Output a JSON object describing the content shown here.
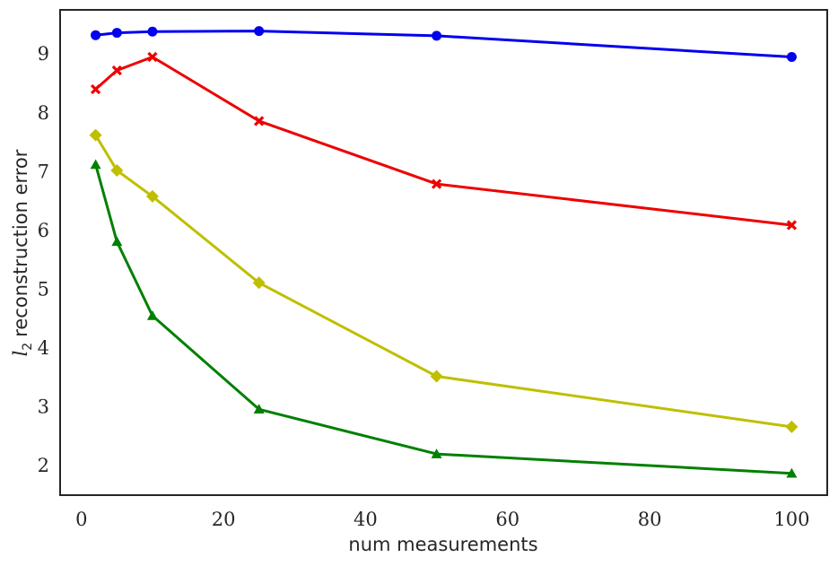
{
  "chart_data": {
    "type": "line",
    "xlabel": "num measurements",
    "ylabel": {
      "symbol": "l",
      "subscript": "2",
      "text": "reconstruction error"
    },
    "xlim": [
      -3,
      105
    ],
    "ylim": [
      1.5,
      9.75
    ],
    "xticks": [
      0,
      20,
      40,
      60,
      80,
      100
    ],
    "yticks": [
      2,
      3,
      4,
      5,
      6,
      7,
      8,
      9
    ],
    "grid": false,
    "x": [
      2,
      5,
      10,
      25,
      50,
      100
    ],
    "series": [
      {
        "color": "#0000ee",
        "marker": "circle",
        "values": [
          9.32,
          9.36,
          9.38,
          9.39,
          9.31,
          8.95
        ]
      },
      {
        "color": "#ee0000",
        "marker": "x",
        "values": [
          8.4,
          8.72,
          8.95,
          7.86,
          6.79,
          6.09
        ]
      },
      {
        "color": "#bfbf00",
        "marker": "diamond",
        "values": [
          7.62,
          7.02,
          6.58,
          5.11,
          3.52,
          2.66
        ]
      },
      {
        "color": "#008000",
        "marker": "triangle",
        "values": [
          7.12,
          5.81,
          4.55,
          2.96,
          2.2,
          1.87
        ]
      }
    ]
  }
}
